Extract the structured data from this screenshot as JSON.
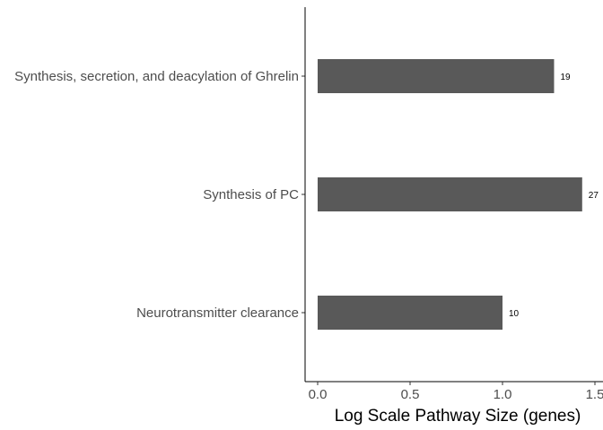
{
  "chart_data": {
    "type": "bar",
    "orientation": "horizontal",
    "categories": [
      "Synthesis, secretion, and deacylation of Ghrelin",
      "Synthesis of PC",
      "Neurotransmitter clearance"
    ],
    "values": [
      1.279,
      1.431,
      1.0
    ],
    "data_labels": [
      "19",
      "27",
      "10"
    ],
    "xlabel": "Log Scale Pathway Size (genes)",
    "ylabel": "",
    "xlim": [
      -0.07,
      1.5
    ],
    "xticks": [
      "0.0",
      "0.5",
      "1.0",
      "1.5"
    ],
    "grid": false,
    "bar_color": "#595959"
  }
}
